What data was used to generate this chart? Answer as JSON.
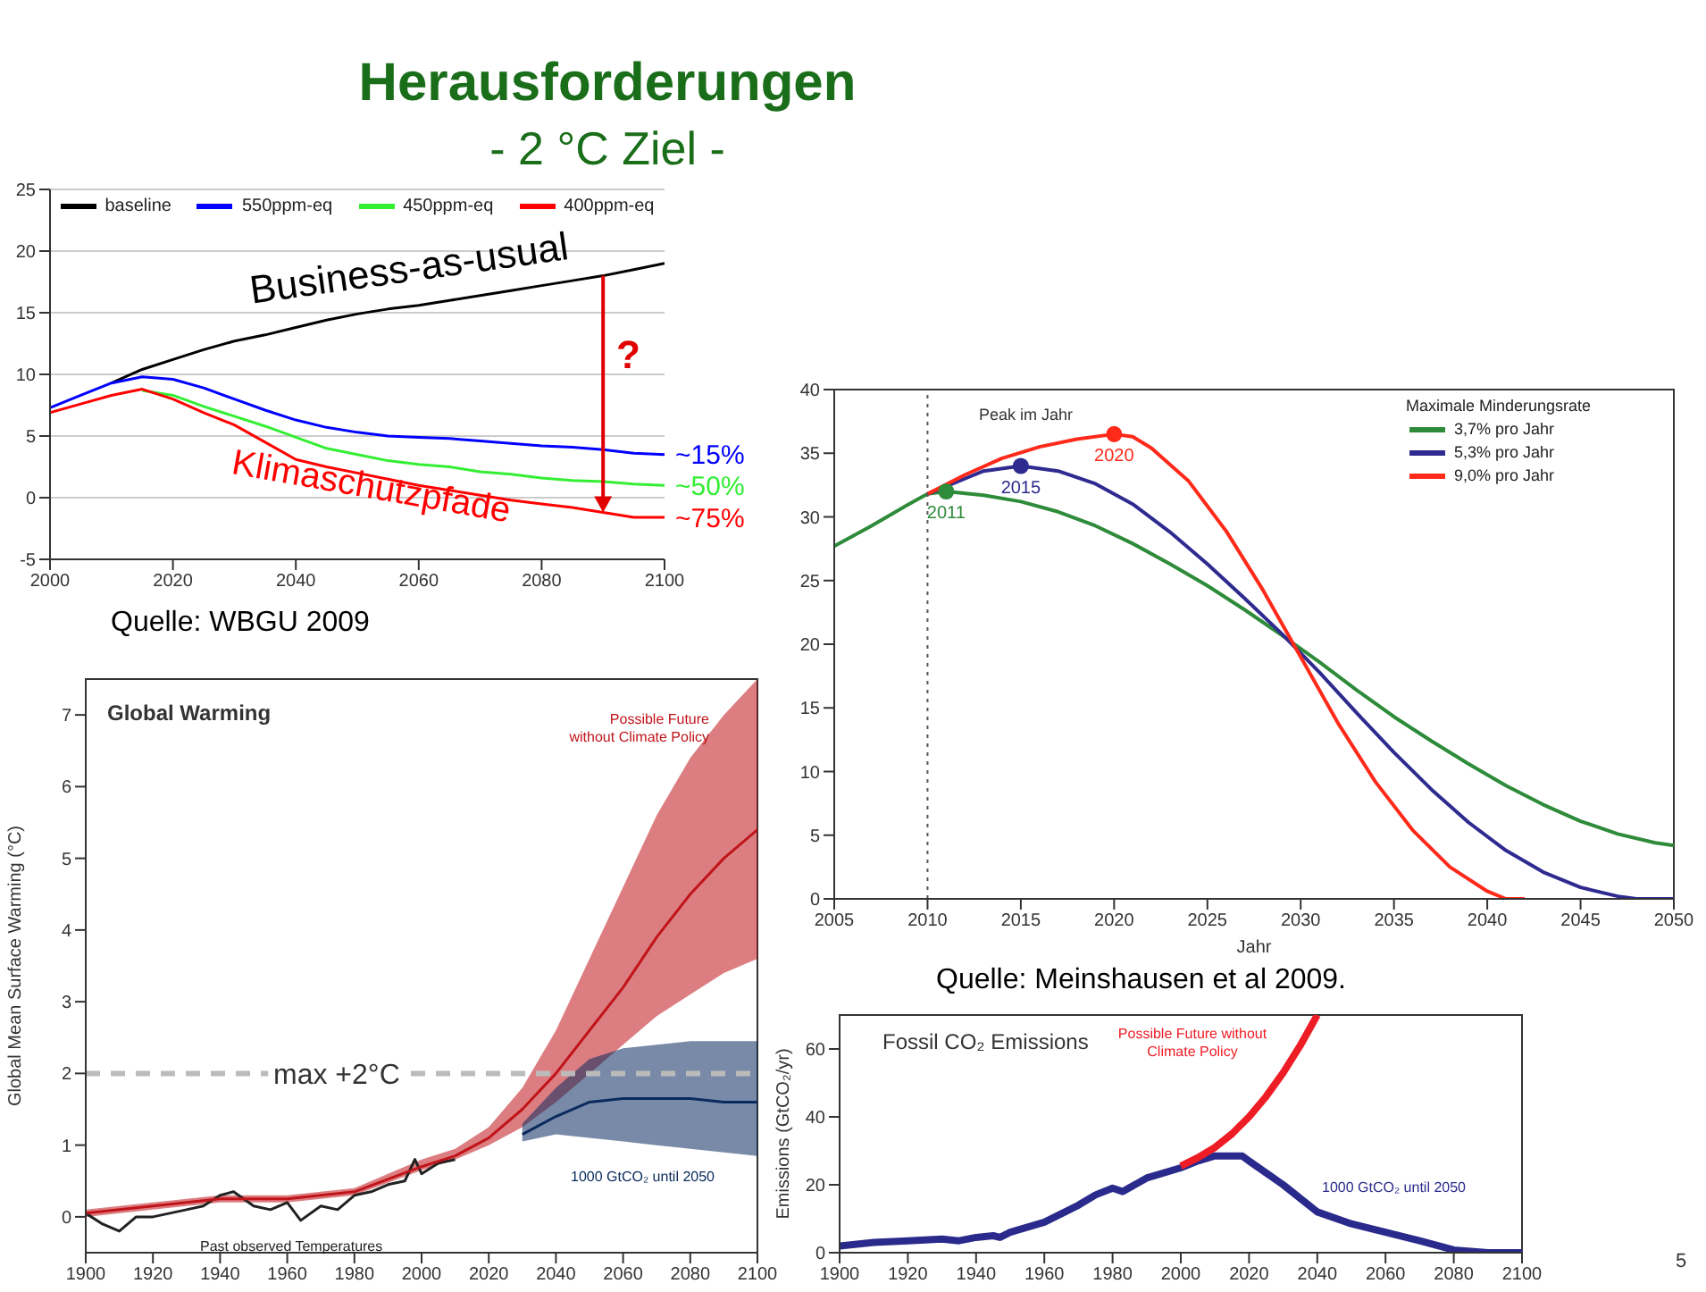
{
  "chart_data": [
    {
      "type": "line",
      "title": "Herausforderungen",
      "subtitle": "- 2 °C Ziel -",
      "x": [
        2000,
        2005,
        2010,
        2015,
        2020,
        2025,
        2030,
        2035,
        2040,
        2045,
        2050,
        2055,
        2060,
        2065,
        2070,
        2075,
        2080,
        2085,
        2090,
        2095,
        2100
      ],
      "xlim": [
        2000,
        2100
      ],
      "xticks": [
        2000,
        2020,
        2040,
        2060,
        2080,
        2100
      ],
      "ylim": [
        -5,
        25
      ],
      "yticks": [
        -5,
        0,
        5,
        10,
        15,
        20,
        25
      ],
      "grid": "y",
      "legend": "top",
      "series": [
        {
          "name": "baseline",
          "color": "#000000",
          "x": [
            2010,
            2015,
            2020,
            2025,
            2030,
            2035,
            2040,
            2045,
            2050,
            2055,
            2060,
            2065,
            2070,
            2075,
            2080,
            2085,
            2090,
            2095,
            2100
          ],
          "values": [
            9.3,
            10.4,
            11.2,
            12.0,
            12.7,
            13.2,
            13.8,
            14.4,
            14.9,
            15.3,
            15.6,
            16.0,
            16.4,
            16.8,
            17.2,
            17.6,
            18.0,
            18.5,
            19.0
          ]
        },
        {
          "name": "550ppm-eq",
          "color": "#0000ff",
          "values": [
            7.3,
            8.3,
            9.3,
            9.8,
            9.6,
            8.9,
            8.0,
            7.1,
            6.3,
            5.7,
            5.3,
            5.0,
            4.9,
            4.8,
            4.6,
            4.4,
            4.2,
            4.1,
            3.9,
            3.6,
            3.5
          ]
        },
        {
          "name": "450ppm-eq",
          "color": "#33ee33",
          "values": [
            null,
            null,
            null,
            8.7,
            8.3,
            7.4,
            6.6,
            5.8,
            4.9,
            4.0,
            3.5,
            3.0,
            2.7,
            2.5,
            2.1,
            1.9,
            1.6,
            1.4,
            1.3,
            1.1,
            1.0
          ]
        },
        {
          "name": "400ppm-eq",
          "color": "#ff0000",
          "values": [
            6.9,
            7.6,
            8.3,
            8.8,
            8.0,
            6.9,
            5.9,
            4.5,
            3.1,
            2.5,
            2.0,
            1.5,
            1.0,
            0.6,
            0.2,
            -0.2,
            -0.5,
            -0.8,
            -1.2,
            -1.6,
            -1.6
          ]
        }
      ],
      "annotations": [
        "Business-as-usual",
        "?",
        "Klimaschutzpfade",
        "Quelle: WBGU 2009",
        {
          "text": "~15%",
          "x": 2100,
          "y": 3.5
        },
        {
          "text": "~50%",
          "x": 2100,
          "y": 1.0
        },
        {
          "text": "~75%",
          "x": 2100,
          "y": -1.6
        }
      ]
    },
    {
      "type": "line",
      "xlabel": "Jahr",
      "xlim": [
        2005,
        2050
      ],
      "xticks": [
        2005,
        2010,
        2015,
        2020,
        2025,
        2030,
        2035,
        2040,
        2045,
        2050
      ],
      "ylim": [
        0,
        40
      ],
      "yticks": [
        0,
        5,
        10,
        15,
        20,
        25,
        30,
        35,
        40
      ],
      "legend": "top right",
      "legend_title": "Maximale Minderungsrate",
      "series": [
        {
          "name": "3,7% pro Jahr",
          "color": "#2e8b3a",
          "x": [
            2005,
            2007,
            2009,
            2010,
            2011,
            2013,
            2015,
            2017,
            2019,
            2021,
            2023,
            2025,
            2027,
            2029,
            2031,
            2033,
            2035,
            2037,
            2039,
            2041,
            2043,
            2045,
            2047,
            2049,
            2050
          ],
          "values": [
            27.7,
            29.3,
            31.0,
            31.8,
            32.0,
            31.7,
            31.2,
            30.4,
            29.3,
            27.9,
            26.3,
            24.6,
            22.7,
            20.7,
            18.6,
            16.4,
            14.3,
            12.4,
            10.6,
            8.9,
            7.4,
            6.1,
            5.1,
            4.4,
            4.2
          ]
        },
        {
          "name": "5,3% pro Jahr",
          "color": "#2e2a8f",
          "x": [
            2010,
            2012,
            2013,
            2015,
            2017,
            2019,
            2021,
            2023,
            2025,
            2027,
            2029,
            2031,
            2033,
            2035,
            2037,
            2039,
            2041,
            2043,
            2045,
            2047,
            2048,
            2050
          ],
          "values": [
            31.8,
            33.0,
            33.6,
            34.0,
            33.6,
            32.6,
            31.0,
            28.8,
            26.3,
            23.6,
            20.8,
            17.8,
            14.6,
            11.5,
            8.6,
            6.0,
            3.8,
            2.1,
            0.9,
            0.2,
            0,
            0
          ]
        },
        {
          "name": "9,0% pro Jahr",
          "color": "#ff2a1a",
          "x": [
            2010,
            2012,
            2014,
            2016,
            2018,
            2020,
            2021,
            2022,
            2024,
            2026,
            2028,
            2030,
            2032,
            2034,
            2036,
            2038,
            2040,
            2041,
            2042
          ],
          "values": [
            31.8,
            33.3,
            34.6,
            35.5,
            36.1,
            36.5,
            36.3,
            35.4,
            32.8,
            28.9,
            24.2,
            19.0,
            13.8,
            9.2,
            5.4,
            2.5,
            0.6,
            0,
            0
          ]
        },
        {
          "type": "scatter",
          "marker": "circle",
          "color": "#2e8b3a",
          "x": [
            2011
          ],
          "values": [
            32.0
          ]
        },
        {
          "type": "scatter",
          "marker": "circle",
          "color": "#2e2a8f",
          "x": [
            2015
          ],
          "values": [
            34.0
          ]
        },
        {
          "type": "scatter",
          "marker": "circle",
          "color": "#ff2a1a",
          "x": [
            2020
          ],
          "values": [
            36.5
          ]
        }
      ],
      "ref_lines": [
        {
          "axis": "x",
          "value": 2010,
          "color": "#555555",
          "line_style": "dotted"
        }
      ],
      "annotations": [
        "Peak im Jahr",
        "Quelle: Meinshausen et al 2009.",
        {
          "text": "2011",
          "x": 2011,
          "y": 32.0
        },
        {
          "text": "2015",
          "x": 2015,
          "y": 34.0
        },
        {
          "text": "2020",
          "x": 2020,
          "y": 36.5
        }
      ]
    },
    {
      "type": "line",
      "title": "Global Warming",
      "ylabel": "Global Mean Surface Warming (°C)",
      "xlim": [
        1900,
        2100
      ],
      "xticks": [
        1900,
        1920,
        1940,
        1960,
        1980,
        2000,
        2020,
        2040,
        2060,
        2080,
        2100
      ],
      "ylim": [
        -0.5,
        7.5
      ],
      "yticks": [
        0,
        1,
        2,
        3,
        4,
        5,
        6,
        7
      ],
      "legend": false,
      "series": [
        {
          "name": "Past observed Temperatures",
          "color": "#222222",
          "x": [
            1900,
            1905,
            1910,
            1915,
            1920,
            1925,
            1930,
            1935,
            1940,
            1944,
            1950,
            1955,
            1960,
            1964,
            1970,
            1975,
            1980,
            1985,
            1990,
            1995,
            1998,
            2000,
            2005,
            2010
          ],
          "values": [
            0.05,
            -0.1,
            -0.2,
            0.0,
            0.0,
            0.05,
            0.1,
            0.15,
            0.3,
            0.35,
            0.15,
            0.1,
            0.2,
            -0.05,
            0.15,
            0.1,
            0.3,
            0.35,
            0.45,
            0.5,
            0.8,
            0.6,
            0.75,
            0.8
          ]
        },
        {
          "name": "Possible Future without Climate Policy",
          "color": "#c0141a",
          "x": [
            1900,
            1920,
            1940,
            1960,
            1980,
            2000,
            2010,
            2020,
            2030,
            2040,
            2050,
            2060,
            2070,
            2080,
            2090,
            2100
          ],
          "values": [
            0.05,
            0.15,
            0.25,
            0.25,
            0.35,
            0.7,
            0.85,
            1.1,
            1.5,
            2.0,
            2.6,
            3.2,
            3.9,
            4.5,
            5.0,
            5.4
          ],
          "lower": [
            0.0,
            0.1,
            0.2,
            0.2,
            0.3,
            0.65,
            0.8,
            1.0,
            1.25,
            1.6,
            2.0,
            2.4,
            2.8,
            3.1,
            3.4,
            3.6
          ],
          "upper": [
            0.1,
            0.2,
            0.3,
            0.3,
            0.4,
            0.8,
            0.95,
            1.25,
            1.8,
            2.6,
            3.6,
            4.6,
            5.6,
            6.4,
            7.0,
            7.5
          ]
        },
        {
          "name": "1000 GtCO₂ until 2050",
          "color": "#0a2a5e",
          "x": [
            2030,
            2040,
            2050,
            2060,
            2070,
            2080,
            2090,
            2100
          ],
          "values": [
            1.15,
            1.4,
            1.6,
            1.65,
            1.65,
            1.65,
            1.6,
            1.6
          ],
          "lower": [
            1.05,
            1.15,
            1.1,
            1.05,
            1.0,
            0.95,
            0.9,
            0.85
          ],
          "upper": [
            1.3,
            1.8,
            2.2,
            2.35,
            2.4,
            2.45,
            2.45,
            2.45
          ]
        }
      ],
      "ref_lines": [
        {
          "axis": "y",
          "value": 2,
          "label": "max +2°C",
          "color": "#bbbbbb",
          "line_style": "dashed"
        }
      ]
    },
    {
      "type": "line",
      "title": "Fossil CO₂ Emissions",
      "ylabel": "Emissions (GtCO₂/yr)",
      "xlim": [
        1900,
        2100
      ],
      "xticks": [
        1900,
        1920,
        1940,
        1960,
        1980,
        2000,
        2020,
        2040,
        2060,
        2080,
        2100
      ],
      "ylim": [
        0,
        70
      ],
      "yticks": [
        0,
        20,
        40,
        60
      ],
      "legend": false,
      "series": [
        {
          "name": "1000 GtCO₂ until 2050",
          "color": "#2a2a8c",
          "x": [
            1900,
            1910,
            1920,
            1930,
            1935,
            1940,
            1945,
            1947,
            1950,
            1960,
            1970,
            1975,
            1980,
            1983,
            1990,
            2000,
            2005,
            2010,
            2015,
            2018,
            2020,
            2030,
            2040,
            2050,
            2060,
            2070,
            2080,
            2090,
            2100
          ],
          "values": [
            2,
            3,
            3.5,
            4,
            3.5,
            4.5,
            5,
            4.5,
            6,
            9,
            14,
            17,
            19,
            18,
            22,
            25,
            27,
            28.5,
            28.5,
            28.5,
            27,
            20,
            12,
            8.5,
            6,
            3.5,
            0.8,
            0,
            0
          ]
        },
        {
          "name": "Possible Future without Climate Policy",
          "color": "#ee1c24",
          "x": [
            2000,
            2005,
            2010,
            2015,
            2020,
            2025,
            2030,
            2035,
            2040
          ],
          "values": [
            25.5,
            28,
            31,
            35,
            40,
            46,
            53,
            61,
            70
          ]
        }
      ],
      "annotations": [
        "5"
      ]
    }
  ]
}
